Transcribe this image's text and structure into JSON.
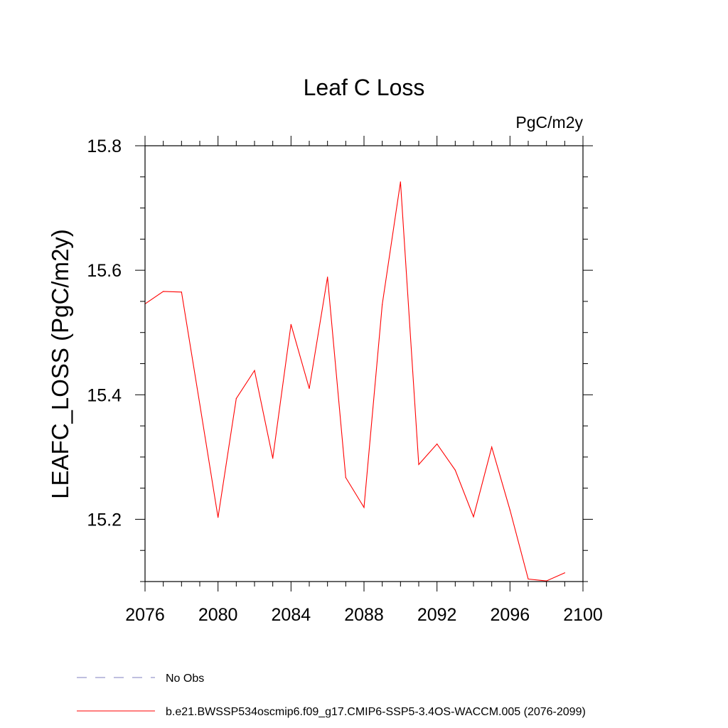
{
  "chart_data": {
    "type": "line",
    "title": "Leaf C Loss",
    "units_label": "PgC/m2y",
    "ylabel": "LEAFC_LOSS  (PgC/m2y)",
    "xlabel": "",
    "xlim": [
      2076,
      2100
    ],
    "ylim": [
      15.1,
      15.8
    ],
    "x_ticks": [
      2076,
      2080,
      2084,
      2088,
      2092,
      2096,
      2100
    ],
    "y_ticks": [
      15.2,
      15.4,
      15.6,
      15.8
    ],
    "x_minor_step": 1,
    "y_minor_step": 0.05,
    "grid": false,
    "series": [
      {
        "name": "b.e21.BWSSP534oscmip6.f09_g17.CMIP6-SSP5-3.4OS-WACCM.005 (2076-2099)",
        "color": "#ff0000",
        "style": "solid",
        "x": [
          2076,
          2077,
          2078,
          2079,
          2080,
          2081,
          2082,
          2083,
          2084,
          2085,
          2086,
          2087,
          2088,
          2089,
          2090,
          2091,
          2092,
          2093,
          2094,
          2095,
          2096,
          2097,
          2098,
          2099
        ],
        "values": [
          15.546,
          15.566,
          15.565,
          15.385,
          15.203,
          15.394,
          15.439,
          15.298,
          15.513,
          15.41,
          15.589,
          15.267,
          15.219,
          15.545,
          15.742,
          15.288,
          15.321,
          15.279,
          15.204,
          15.316,
          15.215,
          15.104,
          15.101,
          15.114
        ]
      }
    ],
    "legend": [
      {
        "label": "No Obs",
        "color": "#7f7fbf",
        "style": "dashed"
      },
      {
        "label": "b.e21.BWSSP534oscmip6.f09_g17.CMIP6-SSP5-3.4OS-WACCM.005 (2076-2099)",
        "color": "#ff0000",
        "style": "solid"
      }
    ],
    "legend_position": "bottom-left"
  }
}
